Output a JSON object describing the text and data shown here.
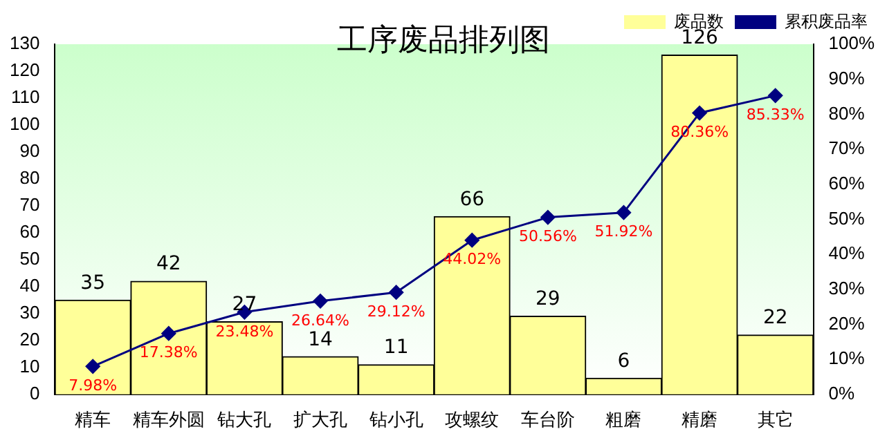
{
  "chart_data": {
    "type": "bar",
    "title": "工序废品排列图",
    "categories": [
      "精车",
      "精车外圆",
      "钻大孔",
      "扩大孔",
      "钻小孔",
      "攻螺纹",
      "车台阶",
      "粗磨",
      "精磨",
      "其它"
    ],
    "series": [
      {
        "name": "废品数",
        "color": "#ffff99",
        "values": [
          35,
          42,
          27,
          14,
          11,
          66,
          29,
          6,
          126,
          22
        ],
        "value_labels": [
          "35",
          "42",
          "27",
          "14",
          "11",
          "66",
          "29",
          "6",
          "126",
          "22"
        ]
      },
      {
        "name": "累积废品率",
        "type": "line",
        "axis": "y2",
        "color": "#000080",
        "values": [
          7.98,
          17.38,
          23.48,
          26.64,
          29.12,
          44.02,
          50.56,
          51.92,
          80.36,
          85.33
        ],
        "value_labels": [
          "7.98%",
          "17.38%",
          "23.48%",
          "26.64%",
          "29.12%",
          "44.02%",
          "50.56%",
          "51.92%",
          "80.36%",
          "85.33%"
        ]
      }
    ],
    "ylim": [
      0,
      130
    ],
    "yticks": [
      0,
      10,
      20,
      30,
      40,
      50,
      60,
      70,
      80,
      90,
      100,
      110,
      120,
      130
    ],
    "y2lim": [
      0,
      100
    ],
    "y2ticks": [
      {
        "value": 0,
        "label": "0%"
      },
      {
        "value": 10,
        "label": "10%"
      },
      {
        "value": 20,
        "label": "20%"
      },
      {
        "value": 30,
        "label": "30%"
      },
      {
        "value": 40,
        "label": "40%"
      },
      {
        "value": 50,
        "label": "50%"
      },
      {
        "value": 60,
        "label": "60%"
      },
      {
        "value": 70,
        "label": "70%"
      },
      {
        "value": 80,
        "label": "80%"
      },
      {
        "value": 90,
        "label": "90%"
      },
      {
        "value": 100,
        "label": "100%"
      }
    ],
    "grid": false,
    "legend": "top right",
    "marker": "diamond",
    "line_style": "solid"
  }
}
